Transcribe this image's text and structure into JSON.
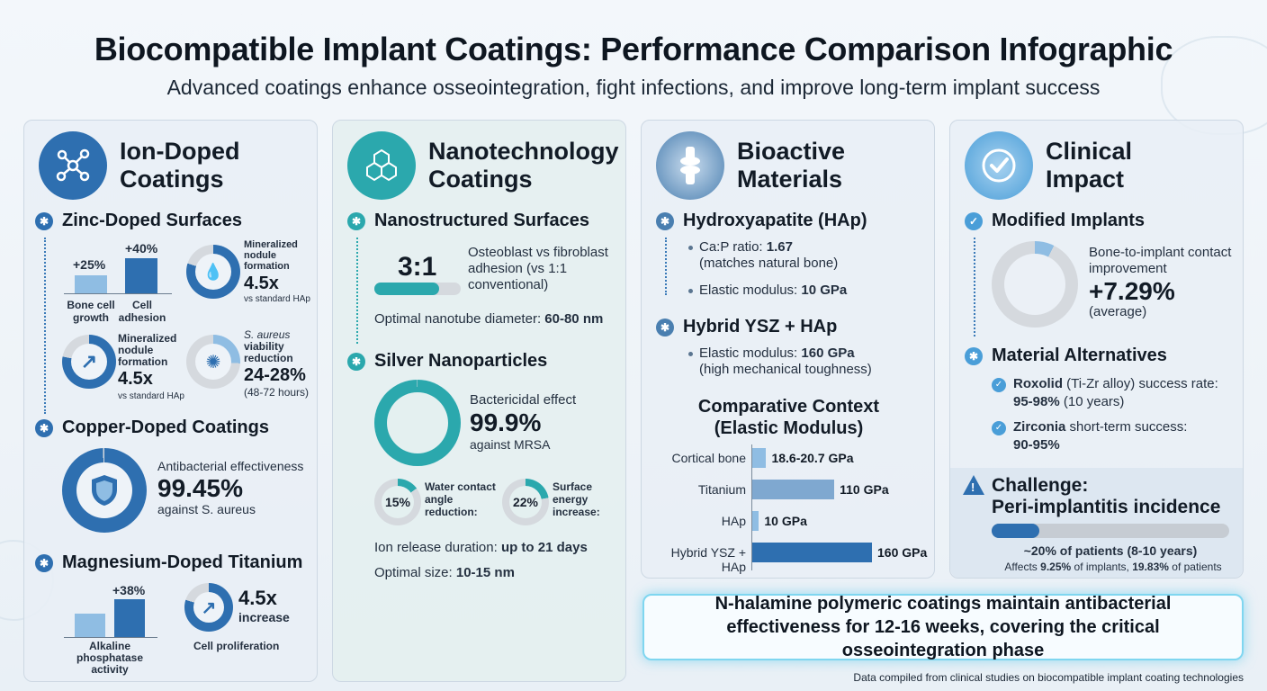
{
  "header": {
    "title": "Biocompatible Implant Coatings: Performance Comparison Infographic",
    "subtitle": "Advanced coatings enhance osseointegration, fight infections, and improve long-term implant success"
  },
  "ion": {
    "title_line1": "Ion-Doped",
    "title_line2": "Coatings",
    "zinc": {
      "heading": "Zinc-Doped Surfaces",
      "bar1_value": "+25%",
      "bar1_label": "Bone cell growth",
      "bar2_value": "+40%",
      "bar2_label": "Cell adhesion",
      "nodule_label": "Mineralized nodule formation",
      "nodule_value": "4.5x",
      "nodule_note": "vs standard HAp",
      "nodule2_label": "Mineralized nodule formation",
      "nodule2_value": "4.5x",
      "nodule2_note": "vs standard HAp",
      "aureus_label_italic": "S. aureus",
      "aureus_label_rest": "viability reduction",
      "aureus_value": "24-28%",
      "aureus_note": "(48-72 hours)"
    },
    "copper": {
      "heading": "Copper-Doped Coatings",
      "label": "Antibacterial effectiveness",
      "value": "99.45%",
      "note": "against S. aureus"
    },
    "magnesium": {
      "heading": "Magnesium-Doped Titanium",
      "bar_value": "+38%",
      "bar_label": "Alkaline phosphatase activity",
      "increase_value": "4.5x",
      "increase_label": "increase",
      "prolif_label": "Cell proliferation"
    }
  },
  "nano": {
    "title_line1": "Nanotechnology",
    "title_line2": "Coatings",
    "nanostructured": {
      "heading": "Nanostructured Surfaces",
      "ratio": "3:1",
      "ratio_fraction": 0.75,
      "ratio_desc": "Osteoblast vs fibroblast adhesion (vs 1:1 conventional)",
      "diameter_label": "Optimal nanotube diameter:",
      "diameter_value": "60-80 nm"
    },
    "silver": {
      "heading": "Silver Nanoparticles",
      "bact_label": "Bactericidal effect",
      "bact_value": "99.9%",
      "bact_note": "against MRSA",
      "water_value": "15%",
      "water_label": "Water contact angle reduction:",
      "energy_value": "22%",
      "energy_label": "Surface energy increase:",
      "release_label": "Ion release duration:",
      "release_value": "up to 21 days",
      "size_label": "Optimal size:",
      "size_value": "10-15 nm"
    }
  },
  "bio": {
    "title_line1": "Bioactive",
    "title_line2": "Materials",
    "hap": {
      "heading": "Hydroxyapatite (HAp)",
      "ratio_label": "Ca:P ratio:",
      "ratio_value": "1.67",
      "ratio_note": "(matches natural bone)",
      "mod_label": "Elastic modulus:",
      "mod_value": "10 GPa"
    },
    "hybrid": {
      "heading": "Hybrid YSZ + HAp",
      "mod_label": "Elastic modulus:",
      "mod_value": "160 GPa",
      "mod_note": "(high mechanical toughness)"
    },
    "comparative_title_line1": "Comparative Context",
    "comparative_title_line2": "(Elastic Modulus)"
  },
  "chart_data": {
    "type": "bar",
    "title": "Comparative Context (Elastic Modulus)",
    "categories": [
      "Cortical bone",
      "Titanium",
      "HAp",
      "Hybrid YSZ + HAp"
    ],
    "values": [
      19.65,
      110,
      10,
      160
    ],
    "value_labels": [
      "18.6-20.7 GPa",
      "110 GPa",
      "10 GPa",
      "160 GPa"
    ],
    "xlim": [
      0,
      160
    ]
  },
  "clinical": {
    "title_line1": "Clinical",
    "title_line2": "Impact",
    "modified": {
      "heading": "Modified Implants",
      "label": "Bone-to-implant contact improvement",
      "value": "+7.29%",
      "note": "(average)",
      "fraction": 0.0729
    },
    "alternatives": {
      "heading": "Material Alternatives",
      "roxolid_name": "Roxolid",
      "roxolid_rest": "(Ti-Zr alloy) success rate:",
      "roxolid_value": "95-98%",
      "roxolid_note": "(10 years)",
      "zirconia_name": "Zirconia",
      "zirconia_rest": "short-term success:",
      "zirconia_value": "90-95%"
    },
    "challenge": {
      "title_line1": "Challenge:",
      "title_line2": "Peri-implantitis incidence",
      "fraction": 0.2,
      "main": "~20% of patients (8-10 years)",
      "detail_pre": "Affects",
      "detail_v1": "9.25%",
      "detail_mid": "of implants,",
      "detail_v2": "19.83%",
      "detail_post": "of patients"
    }
  },
  "callout": "N-halamine polymeric coatings maintain antibacterial effectiveness for 12-16 weeks, covering the critical osseointegration phase",
  "footer": "Data compiled from clinical studies on biocompatible implant coating technologies",
  "colors": {
    "blue": "#2e6fb0",
    "teal": "#2ba8ad",
    "light_blue": "#8fbde3",
    "grey": "#d5d9de"
  }
}
